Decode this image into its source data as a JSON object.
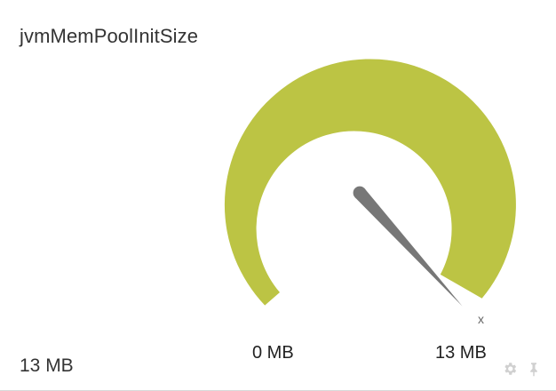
{
  "widget": {
    "title": "jvmMemPoolInitSize",
    "current_value": "13 MB",
    "gauge": {
      "min_label": "0 MB",
      "max_label": "13 MB",
      "value": 13,
      "min": 0,
      "max": 13,
      "unit": "MB",
      "max_marker_glyph": "x",
      "arc_color": "#bcc444",
      "needle_color": "#777777"
    },
    "icons": {
      "settings": "gear-icon",
      "pin": "pin-icon"
    }
  }
}
